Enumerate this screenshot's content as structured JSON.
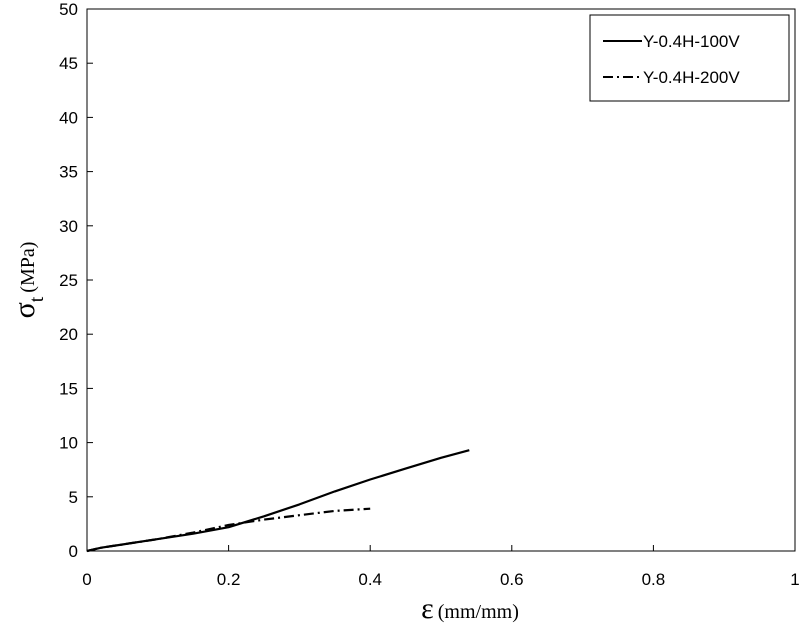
{
  "chart_data": {
    "type": "line",
    "xlabel": {
      "symbol": "ε",
      "unit": "(mm/mm)"
    },
    "ylabel": {
      "symbol": "σ",
      "subscript": "t",
      "unit": "(MPa)"
    },
    "xlim": [
      0,
      1
    ],
    "ylim": [
      0,
      50
    ],
    "x_ticks": [
      "0",
      "0.2",
      "0.4",
      "0.6",
      "0.8",
      "1"
    ],
    "y_ticks": [
      "0",
      "5",
      "10",
      "15",
      "20",
      "25",
      "30",
      "35",
      "40",
      "45",
      "50"
    ],
    "grid": false,
    "legend_position": "top-right",
    "series": [
      {
        "name": "Y-0.4H-100V",
        "line_style": "solid",
        "color": "#000000",
        "points": [
          [
            0,
            0
          ],
          [
            0.02,
            0.3
          ],
          [
            0.05,
            0.6
          ],
          [
            0.1,
            1.1
          ],
          [
            0.15,
            1.6
          ],
          [
            0.2,
            2.2
          ],
          [
            0.25,
            3.2
          ],
          [
            0.3,
            4.3
          ],
          [
            0.35,
            5.5
          ],
          [
            0.4,
            6.6
          ],
          [
            0.45,
            7.6
          ],
          [
            0.5,
            8.6
          ],
          [
            0.54,
            9.3
          ]
        ]
      },
      {
        "name": "Y-0.4H-200V",
        "line_style": "dash-dot",
        "color": "#000000",
        "points": [
          [
            0,
            0
          ],
          [
            0.02,
            0.3
          ],
          [
            0.05,
            0.6
          ],
          [
            0.1,
            1.1
          ],
          [
            0.15,
            1.7
          ],
          [
            0.2,
            2.4
          ],
          [
            0.25,
            2.9
          ],
          [
            0.3,
            3.3
          ],
          [
            0.35,
            3.7
          ],
          [
            0.4,
            3.9
          ]
        ]
      }
    ]
  }
}
